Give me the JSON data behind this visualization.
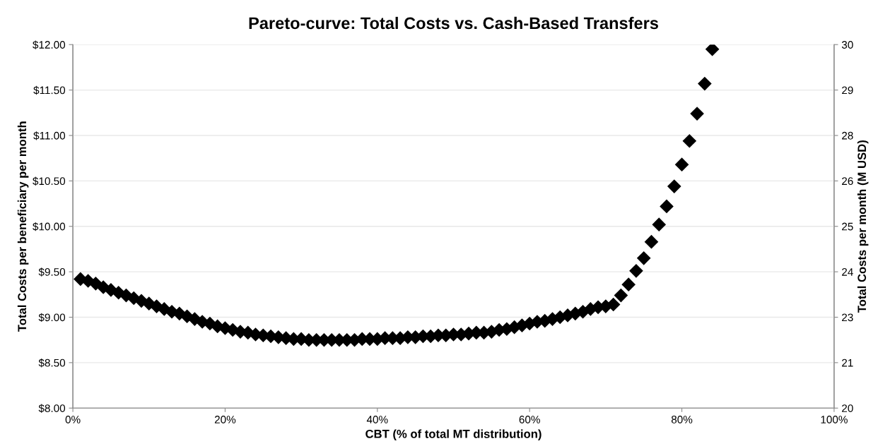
{
  "chart_data": {
    "type": "scatter",
    "title": "Pareto-curve: Total Costs vs. Cash-Based Transfers",
    "xlabel": "CBT (% of total MT distribution)",
    "ylabel": "Total Costs per beneficiary per month",
    "y2label": "Total Costs per month (M USD)",
    "x": [
      1,
      2,
      3,
      4,
      5,
      6,
      7,
      8,
      9,
      10,
      11,
      12,
      13,
      14,
      15,
      16,
      17,
      18,
      19,
      20,
      21,
      22,
      23,
      24,
      25,
      26,
      27,
      28,
      29,
      30,
      31,
      32,
      33,
      34,
      35,
      36,
      37,
      38,
      39,
      40,
      41,
      42,
      43,
      44,
      45,
      46,
      47,
      48,
      49,
      50,
      51,
      52,
      53,
      54,
      55,
      56,
      57,
      58,
      59,
      60,
      61,
      62,
      63,
      64,
      65,
      66,
      67,
      68,
      69,
      70,
      71,
      72,
      73,
      74,
      75,
      76,
      77,
      78,
      79,
      80,
      81,
      82,
      83,
      84
    ],
    "series": [
      {
        "color": "#000000",
        "values": [
          9.42,
          9.4,
          9.37,
          9.33,
          9.3,
          9.27,
          9.24,
          9.21,
          9.18,
          9.15,
          9.12,
          9.09,
          9.06,
          9.04,
          9.01,
          8.98,
          8.95,
          8.93,
          8.9,
          8.88,
          8.86,
          8.84,
          8.83,
          8.81,
          8.8,
          8.79,
          8.78,
          8.77,
          8.76,
          8.76,
          8.75,
          8.75,
          8.75,
          8.75,
          8.75,
          8.75,
          8.75,
          8.76,
          8.76,
          8.76,
          8.77,
          8.77,
          8.77,
          8.78,
          8.78,
          8.79,
          8.79,
          8.8,
          8.8,
          8.81,
          8.81,
          8.82,
          8.83,
          8.83,
          8.84,
          8.86,
          8.87,
          8.89,
          8.91,
          8.93,
          8.95,
          8.96,
          8.98,
          9.0,
          9.02,
          9.04,
          9.06,
          9.09,
          9.11,
          9.12,
          9.14,
          9.24,
          9.36,
          9.51,
          9.65,
          9.83,
          10.02,
          10.22,
          10.44,
          10.68,
          10.94,
          11.24,
          11.57,
          11.95
        ]
      }
    ],
    "marker": "diamond",
    "grid": "y",
    "legend": false,
    "xlim": [
      0,
      100
    ],
    "xticks": [
      {
        "value": 0,
        "label": "0%"
      },
      {
        "value": 20,
        "label": "20%"
      },
      {
        "value": 40,
        "label": "40%"
      },
      {
        "value": 60,
        "label": "60%"
      },
      {
        "value": 80,
        "label": "80%"
      },
      {
        "value": 100,
        "label": "100%"
      }
    ],
    "ylim": [
      8,
      12
    ],
    "yticks": [
      {
        "value": 8,
        "label": "$8.00"
      },
      {
        "value": 8.5,
        "label": "$8.50"
      },
      {
        "value": 9,
        "label": "$9.00"
      },
      {
        "value": 9.5,
        "label": "$9.50"
      },
      {
        "value": 10,
        "label": "$10.00"
      },
      {
        "value": 10.5,
        "label": "$10.50"
      },
      {
        "value": 11,
        "label": "$11.00"
      },
      {
        "value": 11.5,
        "label": "$11.50"
      },
      {
        "value": 12,
        "label": "$12.00"
      }
    ],
    "y2lim": [
      20,
      30
    ],
    "y2ticks": [
      20,
      {
        "value": 21.25,
        "label": "21"
      },
      {
        "value": 22.5,
        "label": "23"
      },
      {
        "value": 23.75,
        "label": "24"
      },
      25,
      {
        "value": 26.25,
        "label": "26"
      },
      {
        "value": 27.5,
        "label": "28"
      },
      {
        "value": 28.75,
        "label": "29"
      },
      30
    ]
  }
}
